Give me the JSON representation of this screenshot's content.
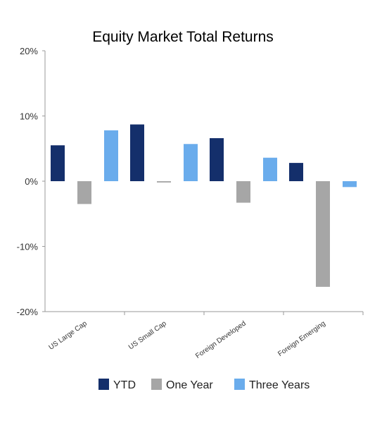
{
  "chart_data": {
    "type": "bar",
    "title": "Equity Market Total Returns",
    "xlabel": "",
    "ylabel": "",
    "categories": [
      "US Large Cap",
      "US Small Cap",
      "Foreign Developed",
      "Foreign Emerging"
    ],
    "series": [
      {
        "name": "YTD",
        "values": [
          5.5,
          8.7,
          6.6,
          2.8
        ],
        "color": "#142f6b"
      },
      {
        "name": "One Year",
        "values": [
          -3.5,
          -0.2,
          -3.3,
          -16.2
        ],
        "color": "#a6a6a6"
      },
      {
        "name": "Three Years",
        "values": [
          7.8,
          5.7,
          3.6,
          -0.9
        ],
        "color": "#6aacec"
      }
    ],
    "ylim": [
      -20,
      20
    ],
    "yticks": [
      20,
      10,
      0,
      -10,
      -20
    ],
    "ytick_labels": [
      "20%",
      "10%",
      "0%",
      "-10%",
      "-20%"
    ],
    "grid": false,
    "legend_position": "bottom",
    "x_tick_rotation": "diagonal"
  }
}
